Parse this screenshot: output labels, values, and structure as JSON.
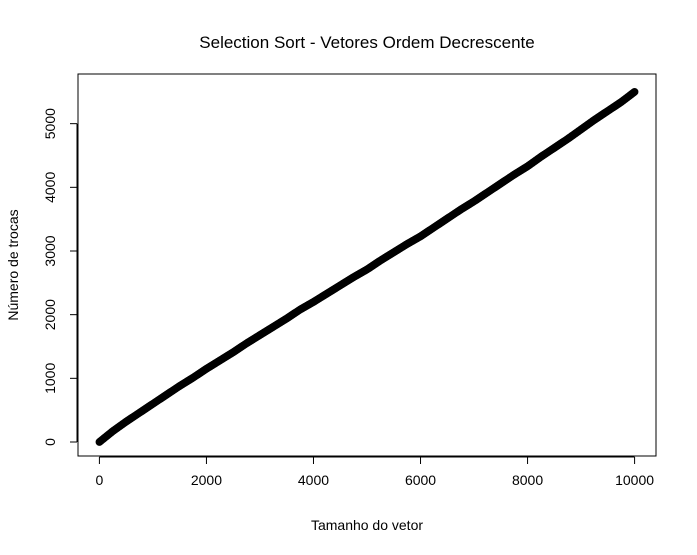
{
  "chart_data": {
    "type": "scatter",
    "title": "Selection Sort - Vetores Ordem Decrescente",
    "xlabel": "Tamanho do vetor",
    "ylabel": "Número de trocas",
    "xlim": [
      -400,
      10400
    ],
    "ylim": [
      -220,
      5780
    ],
    "xticks": [
      0,
      2000,
      4000,
      6000,
      8000,
      10000
    ],
    "yticks": [
      0,
      1000,
      2000,
      3000,
      4000,
      5000
    ],
    "marker": "open-circle",
    "grid": false,
    "legend": "none",
    "series": [
      {
        "color": "#000000",
        "x": [
          0,
          250,
          500,
          750,
          1000,
          1250,
          1500,
          1750,
          2000,
          2250,
          2500,
          2750,
          3000,
          3250,
          3500,
          3750,
          4000,
          4250,
          4500,
          4750,
          5000,
          5250,
          5500,
          5750,
          6000,
          6250,
          6500,
          6750,
          7000,
          7250,
          7500,
          7750,
          8000,
          8250,
          8500,
          8750,
          9000,
          9250,
          9500,
          9750,
          10000
        ],
        "y": [
          0,
          170,
          320,
          460,
          600,
          740,
          880,
          1010,
          1150,
          1280,
          1410,
          1550,
          1680,
          1810,
          1940,
          2080,
          2200,
          2330,
          2460,
          2590,
          2710,
          2850,
          2980,
          3110,
          3230,
          3370,
          3510,
          3650,
          3780,
          3920,
          4060,
          4200,
          4330,
          4480,
          4620,
          4760,
          4910,
          5060,
          5200,
          5340,
          5500
        ]
      }
    ]
  }
}
